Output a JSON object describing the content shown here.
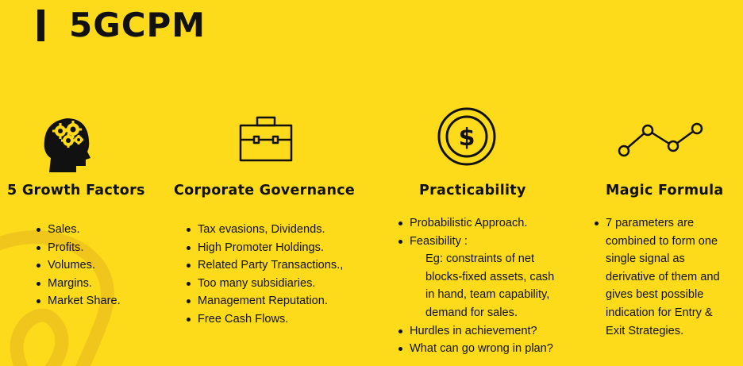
{
  "page": {
    "title": "5GCPM",
    "colors": {
      "background": "#FDDA1A",
      "foreground": "#111111"
    }
  },
  "columns": [
    {
      "icon": "head-gears-icon",
      "heading": "5 Growth Factors",
      "items": [
        "Sales.",
        "Profits.",
        "Volumes.",
        "Margins.",
        "Market Share."
      ]
    },
    {
      "icon": "briefcase-icon",
      "heading": "Corporate Governance",
      "items": [
        "Tax evasions, Dividends.",
        "High Promoter Holdings.",
        "Related Party Transactions.,",
        "Too many subsidiaries.",
        "Management Reputation.",
        "Free Cash Flows."
      ]
    },
    {
      "icon": "dollar-coin-icon",
      "heading": "Practicability",
      "items": [
        "Probabilistic Approach.",
        "Feasibility :"
      ],
      "sub_items": [
        "Eg: constraints of net",
        "blocks-fixed assets, cash",
        "in hand, team capability,",
        "demand for sales."
      ],
      "items_after": [
        "Hurdles in achievement?",
        "What can go wrong in plan?"
      ]
    },
    {
      "icon": "line-graph-icon",
      "heading": "Magic Formula",
      "items": [
        "7 parameters are combined to form one single signal as derivative of them and gives best possible indication for Entry & Exit Strategies."
      ]
    }
  ]
}
